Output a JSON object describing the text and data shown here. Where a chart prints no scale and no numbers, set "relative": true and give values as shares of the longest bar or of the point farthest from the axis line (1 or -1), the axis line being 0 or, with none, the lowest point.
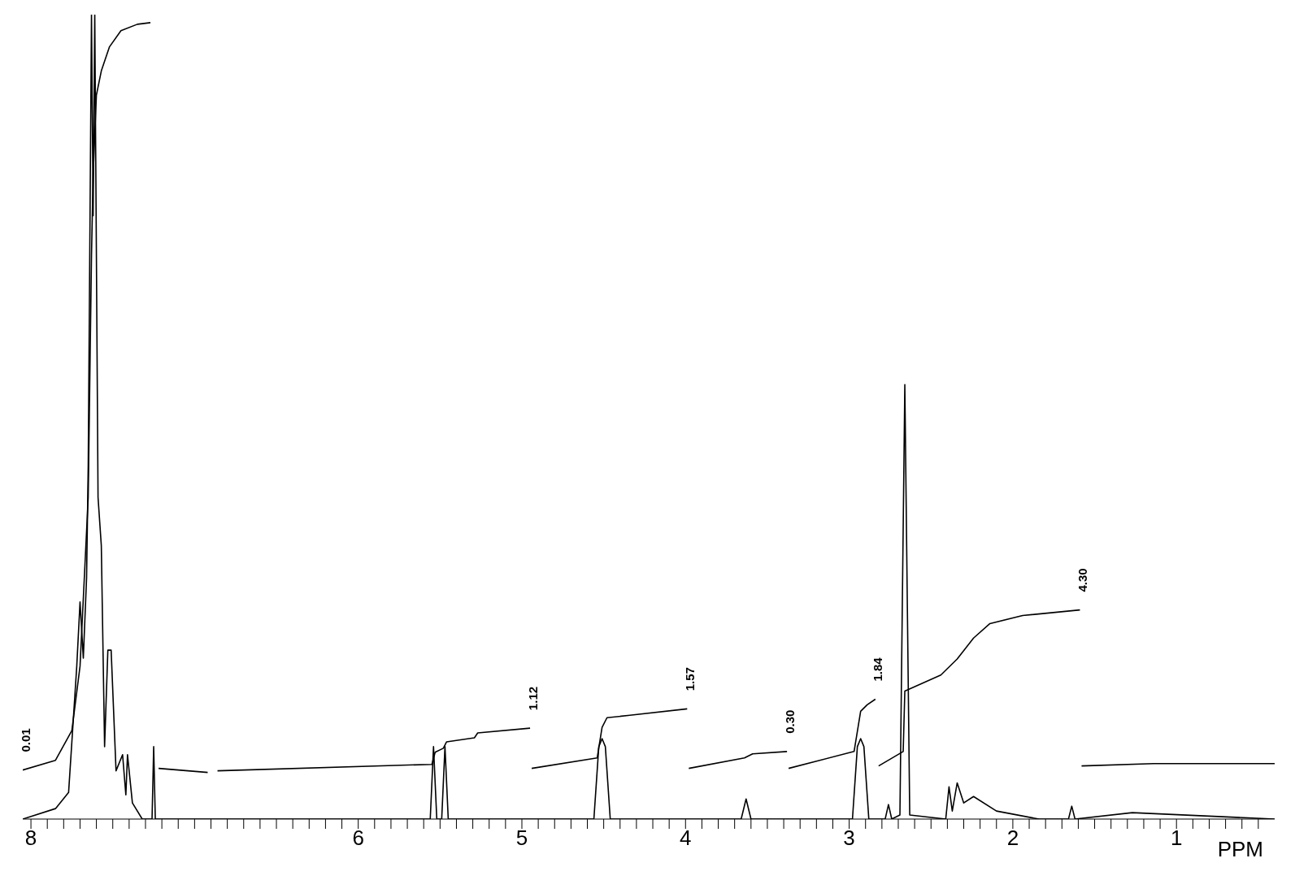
{
  "chart_data": {
    "type": "line",
    "relative": true,
    "xlabel": "PPM",
    "xlim": [
      8.05,
      0.4
    ],
    "xticks": [
      8,
      {
        "value": 7.9,
        "label": null
      },
      {
        "value": 7.8,
        "label": null
      },
      {
        "value": 7.7,
        "label": null
      },
      {
        "value": 7.6,
        "label": null
      },
      {
        "value": 7.5,
        "label": null
      },
      {
        "value": 7.4,
        "label": null
      },
      {
        "value": 7.3,
        "label": null
      },
      {
        "value": 7.2,
        "label": null
      },
      {
        "value": 7.1,
        "label": null
      },
      {
        "value": 7,
        "label": null
      },
      {
        "value": 6.9,
        "label": null
      },
      {
        "value": 6.8,
        "label": null
      },
      {
        "value": 6.7,
        "label": null
      },
      {
        "value": 6.6,
        "label": null
      },
      {
        "value": 6.5,
        "label": null
      },
      {
        "value": 6.4,
        "label": null
      },
      {
        "value": 6.3,
        "label": null
      },
      {
        "value": 6.2,
        "label": null
      },
      {
        "value": 6.1,
        "label": null
      },
      6,
      {
        "value": 5.9,
        "label": null
      },
      {
        "value": 5.8,
        "label": null
      },
      {
        "value": 5.7,
        "label": null
      },
      {
        "value": 5.6,
        "label": null
      },
      {
        "value": 5.5,
        "label": null
      },
      {
        "value": 5.4,
        "label": null
      },
      {
        "value": 5.3,
        "label": null
      },
      {
        "value": 5.2,
        "label": null
      },
      {
        "value": 5.1,
        "label": null
      },
      5,
      {
        "value": 4.9,
        "label": null
      },
      {
        "value": 4.8,
        "label": null
      },
      {
        "value": 4.7,
        "label": null
      },
      {
        "value": 4.6,
        "label": null
      },
      {
        "value": 4.5,
        "label": null
      },
      {
        "value": 4.4,
        "label": null
      },
      {
        "value": 4.3,
        "label": null
      },
      {
        "value": 4.2,
        "label": null
      },
      {
        "value": 4.1,
        "label": null
      },
      4,
      {
        "value": 3.9,
        "label": null
      },
      {
        "value": 3.8,
        "label": null
      },
      {
        "value": 3.7,
        "label": null
      },
      {
        "value": 3.6,
        "label": null
      },
      {
        "value": 3.5,
        "label": null
      },
      {
        "value": 3.4,
        "label": null
      },
      {
        "value": 3.3,
        "label": null
      },
      {
        "value": 3.2,
        "label": null
      },
      {
        "value": 3.1,
        "label": null
      },
      3,
      {
        "value": 2.9,
        "label": null
      },
      {
        "value": 2.8,
        "label": null
      },
      {
        "value": 2.7,
        "label": null
      },
      {
        "value": 2.6,
        "label": null
      },
      {
        "value": 2.5,
        "label": null
      },
      {
        "value": 2.4,
        "label": null
      },
      {
        "value": 2.3,
        "label": null
      },
      {
        "value": 2.2,
        "label": null
      },
      {
        "value": 2.1,
        "label": null
      },
      2,
      {
        "value": 1.9,
        "label": null
      },
      {
        "value": 1.8,
        "label": null
      },
      {
        "value": 1.7,
        "label": null
      },
      {
        "value": 1.6,
        "label": null
      },
      {
        "value": 1.5,
        "label": null
      },
      {
        "value": 1.4,
        "label": null
      },
      {
        "value": 1.3,
        "label": null
      },
      {
        "value": 1.2,
        "label": null
      },
      {
        "value": 1.1,
        "label": null
      },
      1,
      {
        "value": 0.9,
        "label": null
      },
      {
        "value": 0.8,
        "label": null
      },
      {
        "value": 0.7,
        "label": null
      },
      {
        "value": 0.6,
        "label": null
      },
      {
        "value": 0.5,
        "label": null
      }
    ],
    "series": [
      {
        "color": "#000000",
        "x": [
          8.05,
          7.85,
          7.77,
          7.72,
          7.7,
          7.68,
          7.66,
          7.65,
          7.63,
          7.62,
          7.61,
          7.59,
          7.57,
          7.55,
          7.53,
          7.51,
          7.48,
          7.44,
          7.42,
          7.41,
          7.38,
          7.32,
          7.26,
          7.25,
          7.24,
          5.56,
          5.54,
          5.52,
          5.49,
          5.47,
          5.45,
          4.56,
          4.53,
          4.51,
          4.49,
          4.46,
          3.66,
          3.63,
          3.6,
          2.98,
          2.95,
          2.93,
          2.91,
          2.88,
          2.78,
          2.76,
          2.74,
          2.69,
          2.66,
          2.63,
          2.41,
          2.39,
          2.37,
          2.34,
          2.3,
          2.24,
          2.1,
          1.84,
          1.66,
          1.64,
          1.62,
          1.27,
          0.4
        ],
        "values": [
          0,
          0.013,
          0.033,
          0.19,
          0.27,
          0.2,
          0.3,
          0.44,
          1,
          0.75,
          1,
          0.4,
          0.34,
          0.09,
          0.21,
          0.21,
          0.06,
          0.08,
          0.03,
          0.08,
          0.02,
          0,
          0,
          0.09,
          0,
          0,
          0.09,
          0,
          0,
          0.09,
          0,
          0,
          0.09,
          0.1,
          0.09,
          0,
          0,
          0.025,
          0,
          0,
          0.09,
          0.1,
          0.09,
          0,
          0,
          0.018,
          0,
          0.005,
          0.54,
          0.005,
          0,
          0.04,
          0.01,
          0.045,
          0.02,
          0.028,
          0.01,
          0,
          0,
          0.016,
          0,
          0.008,
          0
        ]
      },
      {
        "color": "#000000",
        "x": [
          8.05,
          7.85,
          7.75,
          7.7,
          7.65,
          7.63,
          7.62,
          7.6,
          7.57,
          7.52,
          7.45,
          7.35,
          7.27,
          7.25,
          7.22,
          6.92,
          6.89,
          6.86,
          5.55,
          5.53,
          5.48,
          5.46,
          5.29,
          5.27,
          4.95,
          4.945,
          4.94,
          4.54,
          4.51,
          4.48,
          4.34,
          3.99,
          3.985,
          3.98,
          3.64,
          3.59,
          3.38,
          3.375,
          3.37,
          2.97,
          2.93,
          2.89,
          2.84,
          2.83,
          2.82,
          2.67,
          2.66,
          2.44,
          2.34,
          2.24,
          2.14,
          1.94,
          1.59,
          1.585,
          1.58,
          1.14,
          0.4
        ],
        "values": [
          0.061,
          0.073,
          0.11,
          0.19,
          0.4,
          0.7,
          0.8,
          0.9,
          0.93,
          0.96,
          0.98,
          0.988,
          0.99,
          null,
          0.063,
          0.058,
          null,
          0.06,
          0.068,
          0.083,
          0.088,
          0.096,
          0.101,
          0.107,
          0.113,
          null,
          0.063,
          0.076,
          0.114,
          0.126,
          0.129,
          0.137,
          null,
          0.063,
          0.076,
          0.081,
          0.084,
          null,
          0.063,
          0.084,
          0.134,
          0.142,
          0.149,
          null,
          0.066,
          0.084,
          0.159,
          0.179,
          0.199,
          0.225,
          0.243,
          0.253,
          0.26,
          null,
          0.066,
          0.069,
          0.069
        ]
      }
    ],
    "annotations": [
      {
        "text": "0.01",
        "x": 8.05,
        "y": 0.061
      },
      {
        "text": "1.12",
        "x": 4.95,
        "y": 0.113
      },
      {
        "text": "1.57",
        "x": 3.99,
        "y": 0.137
      },
      {
        "text": "0.30",
        "x": 3.38,
        "y": 0.084
      },
      {
        "text": "1.84",
        "x": 2.84,
        "y": 0.149
      },
      {
        "text": "4.30",
        "x": 1.59,
        "y": 0.26
      }
    ]
  }
}
